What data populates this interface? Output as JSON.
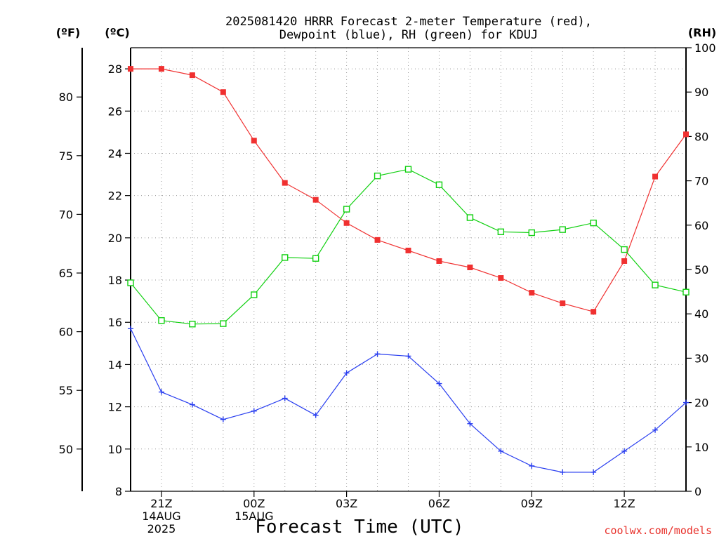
{
  "chart_data": {
    "type": "line",
    "title_line1": "2025081420 HRRR Forecast 2-meter Temperature (red),",
    "title_line2": "Dewpoint (blue), RH (green) for KDUJ",
    "xlabel": "Forecast Time (UTC)",
    "credit": "coolwx.com/models",
    "units": {
      "fahrenheit": "(ºF)",
      "celsius": "(ºC)",
      "rh": "(RH)"
    },
    "x": [
      20,
      21,
      22,
      23,
      24,
      25,
      26,
      27,
      28,
      29,
      30,
      31,
      32,
      33,
      34,
      35,
      36,
      37,
      38
    ],
    "xlim": [
      20,
      38
    ],
    "x_ticks": [
      {
        "x": 21,
        "lines": [
          "21Z",
          "14AUG",
          "2025"
        ]
      },
      {
        "x": 24,
        "lines": [
          "00Z",
          "15AUG"
        ]
      },
      {
        "x": 27,
        "lines": [
          "03Z"
        ]
      },
      {
        "x": 30,
        "lines": [
          "06Z"
        ]
      },
      {
        "x": 33,
        "lines": [
          "09Z"
        ]
      },
      {
        "x": 36,
        "lines": [
          "12Z"
        ]
      }
    ],
    "celsius_axis": {
      "ylim": [
        8,
        29
      ],
      "ticks": [
        "8",
        "10",
        "12",
        "14",
        "16",
        "18",
        "20",
        "22",
        "24",
        "26",
        "28"
      ]
    },
    "fahrenheit_axis": {
      "ticks": [
        "50",
        "55",
        "60",
        "65",
        "70",
        "75",
        "80"
      ]
    },
    "rh_axis": {
      "ylim": [
        0,
        100
      ],
      "ticks": [
        "0",
        "10",
        "20",
        "30",
        "40",
        "50",
        "60",
        "70",
        "80",
        "90",
        "100"
      ]
    },
    "grid": true,
    "series": [
      {
        "name": "Temperature",
        "axis": "celsius",
        "color": "#f03030",
        "marker": "filled-square",
        "values": [
          28.0,
          28.0,
          27.7,
          26.9,
          24.6,
          22.6,
          21.8,
          20.7,
          19.9,
          19.4,
          18.9,
          18.6,
          18.1,
          17.4,
          16.9,
          16.5,
          18.9,
          22.9,
          24.9
        ]
      },
      {
        "name": "Dewpoint",
        "axis": "celsius",
        "color": "#2a3ff0",
        "marker": "plus",
        "values": [
          15.7,
          12.7,
          12.1,
          11.4,
          11.8,
          12.4,
          11.6,
          13.6,
          14.5,
          14.4,
          13.1,
          11.2,
          9.9,
          9.2,
          8.9,
          8.9,
          9.9,
          10.9,
          12.2
        ]
      },
      {
        "name": "RH",
        "axis": "rh",
        "color": "#10d010",
        "marker": "open-square",
        "values": [
          47.0,
          38.5,
          37.7,
          37.8,
          44.3,
          52.7,
          52.5,
          63.6,
          71.1,
          72.6,
          69.1,
          61.7,
          58.5,
          58.3,
          59.0,
          60.5,
          54.5,
          46.5,
          44.9
        ]
      }
    ]
  }
}
